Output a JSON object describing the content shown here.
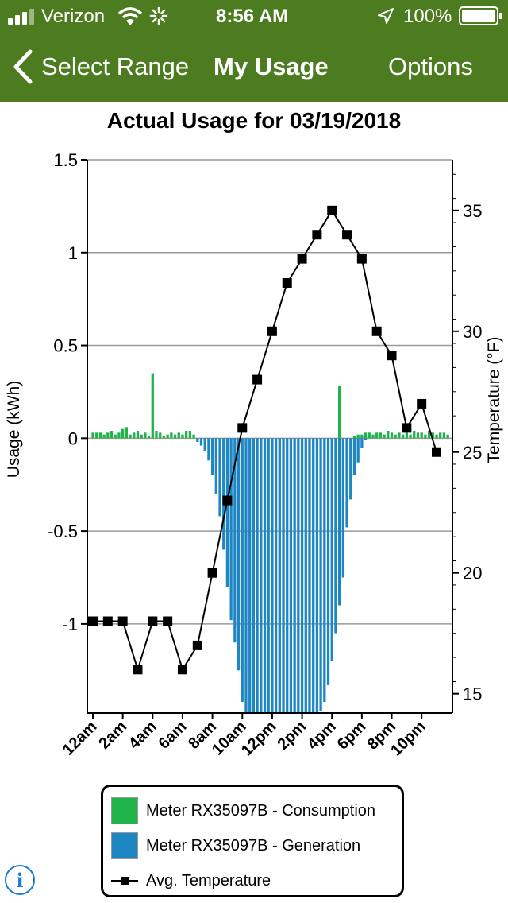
{
  "status_bar": {
    "carrier": "Verizon",
    "time": "8:56 AM",
    "battery": "100%"
  },
  "nav": {
    "back_label": "Select Range",
    "title": "My Usage",
    "options_label": "Options"
  },
  "colors": {
    "header": "#4c7c1f",
    "consumption": "#1fb34a",
    "generation": "#1f86c4",
    "temperature": "#000000"
  },
  "chart_data": {
    "type": "bar",
    "title": "Actual Usage for 03/19/2018",
    "ylabel": "Usage (kWh)",
    "y2label": "Temperature (°F)",
    "ylim": [
      -1.48,
      1.5
    ],
    "y2lim": [
      14.2,
      37.1
    ],
    "yticks": [
      "1.5",
      "1",
      "0.5",
      "0",
      "-0.5",
      "-1"
    ],
    "y2ticks": [
      "35",
      "30",
      "25",
      "20",
      "15"
    ],
    "xticks": [
      "12am",
      "2am",
      "4am",
      "6am",
      "8am",
      "10am",
      "12pm",
      "2pm",
      "4pm",
      "6pm",
      "8pm",
      "10pm"
    ],
    "series": [
      {
        "name": "Meter RX35097B - Consumption",
        "values": [
          0.03,
          0.03,
          0.03,
          0.02,
          0.03,
          0.04,
          0.02,
          0.03,
          0.05,
          0.06,
          0.02,
          0.03,
          0.04,
          0.02,
          0.03,
          0.01,
          0.35,
          0.04,
          0.03,
          0.01,
          0.02,
          0.03,
          0.02,
          0.03,
          0.02,
          0.04,
          0.04,
          0.02,
          0,
          0,
          0,
          0,
          0,
          0,
          0,
          0,
          0,
          0,
          0,
          0,
          0,
          0,
          0,
          0,
          0,
          0,
          0,
          0,
          0,
          0,
          0,
          0,
          0,
          0,
          0,
          0,
          0,
          0,
          0,
          0,
          0,
          0,
          0,
          0,
          0,
          0,
          0.28,
          0,
          0,
          0,
          0.01,
          0.02,
          0.02,
          0.03,
          0.03,
          0.02,
          0.03,
          0.03,
          0.02,
          0.04,
          0.03,
          0.02,
          0.03,
          0.02,
          0.03,
          0.02,
          0.04,
          0.03,
          0.03,
          0.02,
          0.04,
          0.03,
          0.02,
          0.03,
          0.03,
          0.02
        ]
      },
      {
        "name": "Meter RX35097B - Generation",
        "values": [
          0,
          0,
          0,
          0,
          0,
          0,
          0,
          0,
          0,
          0,
          0,
          0,
          0,
          0,
          0,
          0,
          0,
          0,
          0,
          0,
          0,
          0,
          0,
          0,
          0,
          0,
          0,
          0,
          -0.02,
          -0.04,
          -0.07,
          -0.12,
          -0.2,
          -0.3,
          -0.42,
          -0.6,
          -0.8,
          -0.98,
          -1.1,
          -1.25,
          -1.42,
          -1.48,
          -1.48,
          -1.48,
          -1.48,
          -1.48,
          -1.48,
          -1.48,
          -1.48,
          -1.48,
          -1.48,
          -1.48,
          -1.48,
          -1.48,
          -1.48,
          -1.48,
          -1.48,
          -1.48,
          -1.48,
          -1.48,
          -1.48,
          -1.47,
          -1.42,
          -1.33,
          -1.2,
          -1.05,
          -0.9,
          -0.75,
          -0.48,
          -0.33,
          -0.2,
          -0.13,
          -0.05,
          -0.01,
          0,
          0,
          0,
          0,
          0,
          0,
          0,
          0,
          0,
          0,
          0,
          0,
          0,
          0,
          0,
          0,
          0,
          0,
          0,
          0,
          0,
          0
        ]
      },
      {
        "name": "Avg. Temperature",
        "values": [
          18,
          18,
          18,
          16,
          18,
          18,
          16,
          17,
          20,
          23,
          26,
          28,
          30,
          32,
          33,
          34,
          35,
          34,
          33,
          30,
          29,
          26,
          27,
          25
        ]
      }
    ],
    "legend": "bottom",
    "grid": true
  }
}
